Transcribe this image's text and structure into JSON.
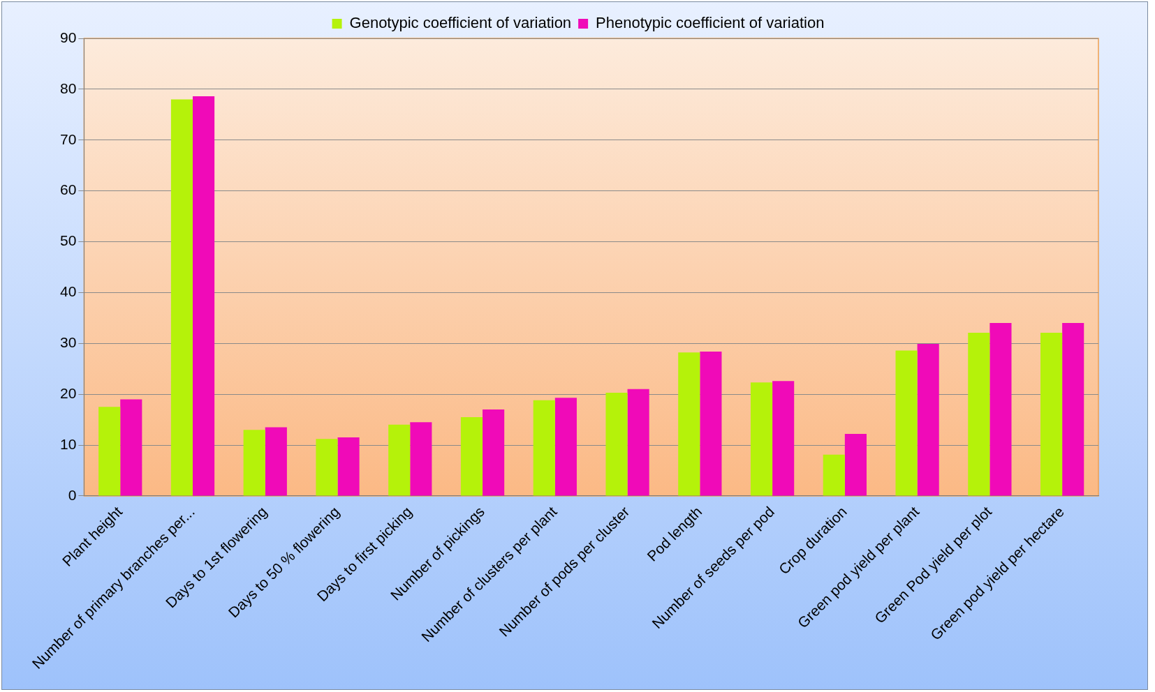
{
  "chart_data": {
    "type": "bar",
    "categories": [
      "Plant height",
      "Number of primary branches per...",
      "Days to 1st flowering",
      "Days to 50 % flowering",
      "Days to first picking",
      "Number of pickings",
      "Number of clusters per plant",
      "Number of pods per cluster",
      "Pod length",
      "Number of seeds per pod",
      "Crop duration",
      "Green pod yield per plant",
      "Green Pod yield per plot",
      "Green pod yield per hectare"
    ],
    "series": [
      {
        "name": "Genotypic coefficient of variation",
        "color": "#b5f20a",
        "values": [
          17.5,
          78,
          13,
          11.2,
          14,
          15.5,
          18.8,
          20.3,
          28.2,
          22.3,
          8.1,
          28.6,
          32.1,
          32.1
        ]
      },
      {
        "name": "Phenotypic coefficient of variation",
        "color": "#f00ab8",
        "values": [
          19,
          78.6,
          13.5,
          11.5,
          14.5,
          17,
          19.3,
          21,
          28.4,
          22.6,
          12.2,
          29.9,
          34,
          34
        ]
      }
    ],
    "ylim": [
      0,
      90
    ],
    "yticks": [
      0,
      10,
      20,
      30,
      40,
      50,
      60,
      70,
      80,
      90
    ],
    "grid": "y",
    "legend": "top"
  }
}
